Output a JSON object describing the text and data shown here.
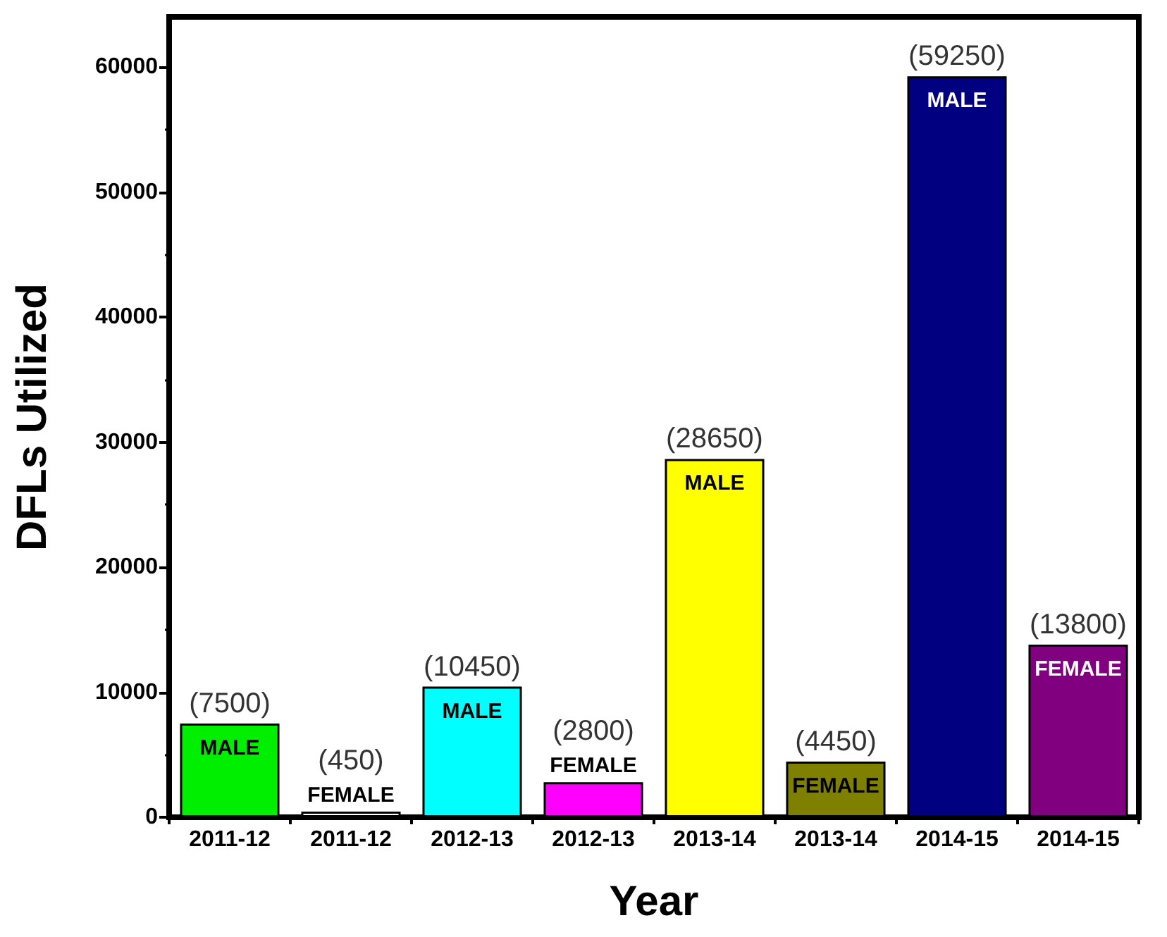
{
  "chart_data": {
    "type": "bar",
    "xlabel": "Year",
    "ylabel": "DFLs Utilized",
    "categories": [
      "2011-12",
      "2011-12",
      "2012-13",
      "2012-13",
      "2013-14",
      "2013-14",
      "2014-15",
      "2014-15"
    ],
    "values": [
      7500,
      450,
      10450,
      2800,
      28650,
      4450,
      59250,
      13800
    ],
    "colors": [
      "#00ee00",
      "#ffffff",
      "#00ffff",
      "#ff00ff",
      "#ffff00",
      "#808000",
      "#000080",
      "#800080"
    ],
    "value_labels": [
      "(7500)",
      "(450)",
      "(10450)",
      "(2800)",
      "(28650)",
      "(4450)",
      "(59250)",
      "(13800)"
    ],
    "annotations": [
      "MALE",
      "FEMALE",
      "MALE",
      "FEMALE",
      "MALE",
      "FEMALE",
      "MALE",
      "FEMALE"
    ],
    "ylim": [
      0,
      64000
    ],
    "yticks": [
      0,
      10000,
      20000,
      30000,
      40000,
      50000,
      60000
    ],
    "grid": false
  }
}
